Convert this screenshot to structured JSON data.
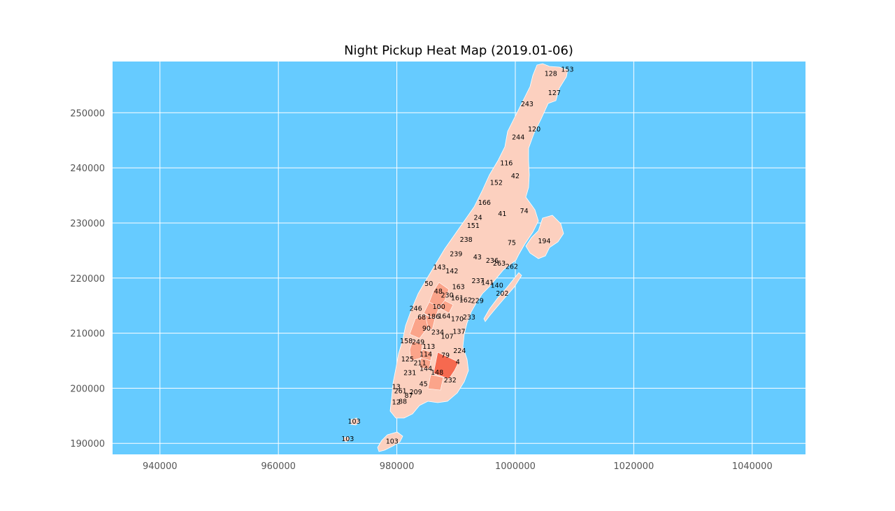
{
  "chart_data": {
    "type": "heatmap",
    "title": "Night Pickup Heat Map (2019.01-06)",
    "xlim": [
      932000,
      1049000
    ],
    "ylim": [
      188000,
      259300
    ],
    "x_ticks": [
      940000,
      960000,
      980000,
      1000000,
      1020000,
      1040000
    ],
    "y_ticks": [
      190000,
      200000,
      210000,
      220000,
      230000,
      240000,
      250000
    ],
    "x_tick_labels": [
      "940000",
      "960000",
      "980000",
      "1000000",
      "1020000",
      "1040000"
    ],
    "y_tick_labels": [
      "190000",
      "200000",
      "210000",
      "220000",
      "230000",
      "240000",
      "250000"
    ],
    "grid": true,
    "colors": {
      "background": "#66CBFF",
      "grid": "#ffffff",
      "zone_low": "#FCD0BF",
      "zone_mid": "#FBA48A",
      "zone_high": "#F6694F",
      "zone_border": "#ffffff"
    },
    "zones": [
      {
        "id": "153",
        "x": 1008800,
        "y": 257800,
        "level": 0
      },
      {
        "id": "128",
        "x": 1006000,
        "y": 257000,
        "level": 0
      },
      {
        "id": "127",
        "x": 1006600,
        "y": 253500,
        "level": 0
      },
      {
        "id": "243",
        "x": 1002000,
        "y": 251500,
        "level": 0
      },
      {
        "id": "120",
        "x": 1003200,
        "y": 246900,
        "level": 0
      },
      {
        "id": "244",
        "x": 1000500,
        "y": 245500,
        "level": 0
      },
      {
        "id": "116",
        "x": 998500,
        "y": 240800,
        "level": 0
      },
      {
        "id": "42",
        "x": 1000000,
        "y": 238400,
        "level": 0
      },
      {
        "id": "152",
        "x": 996800,
        "y": 237200,
        "level": 0
      },
      {
        "id": "166",
        "x": 994800,
        "y": 233600,
        "level": 0
      },
      {
        "id": "74",
        "x": 1001500,
        "y": 232100,
        "level": 0
      },
      {
        "id": "41",
        "x": 997800,
        "y": 231600,
        "level": 0
      },
      {
        "id": "24",
        "x": 993700,
        "y": 230900,
        "level": 0
      },
      {
        "id": "151",
        "x": 992900,
        "y": 229400,
        "level": 0
      },
      {
        "id": "194",
        "x": 1004900,
        "y": 226600,
        "level": 0
      },
      {
        "id": "238",
        "x": 991700,
        "y": 226900,
        "level": 0
      },
      {
        "id": "75",
        "x": 999400,
        "y": 226300,
        "level": 0
      },
      {
        "id": "239",
        "x": 990000,
        "y": 224300,
        "level": 0
      },
      {
        "id": "43",
        "x": 993600,
        "y": 223700,
        "level": 0
      },
      {
        "id": "236",
        "x": 996100,
        "y": 223100,
        "level": 0
      },
      {
        "id": "263",
        "x": 997300,
        "y": 222600,
        "level": 0
      },
      {
        "id": "262",
        "x": 999400,
        "y": 222000,
        "level": 0
      },
      {
        "id": "143",
        "x": 987200,
        "y": 221900,
        "level": 0
      },
      {
        "id": "142",
        "x": 989300,
        "y": 221200,
        "level": 0
      },
      {
        "id": "50",
        "x": 985400,
        "y": 218900,
        "level": 0
      },
      {
        "id": "237",
        "x": 993700,
        "y": 219400,
        "level": 0
      },
      {
        "id": "141",
        "x": 995300,
        "y": 219100,
        "level": 0
      },
      {
        "id": "140",
        "x": 996900,
        "y": 218600,
        "level": 0
      },
      {
        "id": "163",
        "x": 990400,
        "y": 218300,
        "level": 0
      },
      {
        "id": "48",
        "x": 987000,
        "y": 217500,
        "level": 1
      },
      {
        "id": "230",
        "x": 988500,
        "y": 216800,
        "level": 1
      },
      {
        "id": "202",
        "x": 997800,
        "y": 217100,
        "level": 0
      },
      {
        "id": "161",
        "x": 990200,
        "y": 216300,
        "level": 0
      },
      {
        "id": "162",
        "x": 991600,
        "y": 215900,
        "level": 0
      },
      {
        "id": "229",
        "x": 993600,
        "y": 215800,
        "level": 0
      },
      {
        "id": "100",
        "x": 987100,
        "y": 214700,
        "level": 1
      },
      {
        "id": "246",
        "x": 983200,
        "y": 214400,
        "level": 0
      },
      {
        "id": "68",
        "x": 984200,
        "y": 212800,
        "level": 1
      },
      {
        "id": "186",
        "x": 986200,
        "y": 212900,
        "level": 1
      },
      {
        "id": "164",
        "x": 988000,
        "y": 213000,
        "level": 0
      },
      {
        "id": "170",
        "x": 990200,
        "y": 212500,
        "level": 0
      },
      {
        "id": "233",
        "x": 992200,
        "y": 212800,
        "level": 0
      },
      {
        "id": "90",
        "x": 985000,
        "y": 210800,
        "level": 0
      },
      {
        "id": "234",
        "x": 986900,
        "y": 210100,
        "level": 0
      },
      {
        "id": "137",
        "x": 990500,
        "y": 210200,
        "level": 0
      },
      {
        "id": "107",
        "x": 988500,
        "y": 209300,
        "level": 0
      },
      {
        "id": "158",
        "x": 981600,
        "y": 208500,
        "level": 0
      },
      {
        "id": "249",
        "x": 983600,
        "y": 208300,
        "level": 1
      },
      {
        "id": "113",
        "x": 985400,
        "y": 207500,
        "level": 1
      },
      {
        "id": "224",
        "x": 990600,
        "y": 206700,
        "level": 0
      },
      {
        "id": "114",
        "x": 984900,
        "y": 206100,
        "level": 1
      },
      {
        "id": "79",
        "x": 988200,
        "y": 205900,
        "level": 2
      },
      {
        "id": "125",
        "x": 981800,
        "y": 205200,
        "level": 0
      },
      {
        "id": "4",
        "x": 990300,
        "y": 204700,
        "level": 0
      },
      {
        "id": "211",
        "x": 983900,
        "y": 204500,
        "level": 0
      },
      {
        "id": "144",
        "x": 984900,
        "y": 203500,
        "level": 0
      },
      {
        "id": "148",
        "x": 986800,
        "y": 202800,
        "level": 1
      },
      {
        "id": "231",
        "x": 982200,
        "y": 202700,
        "level": 0
      },
      {
        "id": "232",
        "x": 989000,
        "y": 201400,
        "level": 0
      },
      {
        "id": "45",
        "x": 984500,
        "y": 200700,
        "level": 0
      },
      {
        "id": "13",
        "x": 979900,
        "y": 200200,
        "level": 0
      },
      {
        "id": "261",
        "x": 980600,
        "y": 199400,
        "level": 0
      },
      {
        "id": "209",
        "x": 983200,
        "y": 199200,
        "level": 0
      },
      {
        "id": "87",
        "x": 982000,
        "y": 198600,
        "level": 0
      },
      {
        "id": "12",
        "x": 979900,
        "y": 197400,
        "level": 0
      },
      {
        "id": "88",
        "x": 981000,
        "y": 197500,
        "level": 0
      },
      {
        "id": "103",
        "x": 972800,
        "y": 193900,
        "level": 0
      },
      {
        "id": "103",
        "x": 971700,
        "y": 190700,
        "level": 0
      },
      {
        "id": "103",
        "x": 979200,
        "y": 190300,
        "level": 0
      }
    ]
  }
}
